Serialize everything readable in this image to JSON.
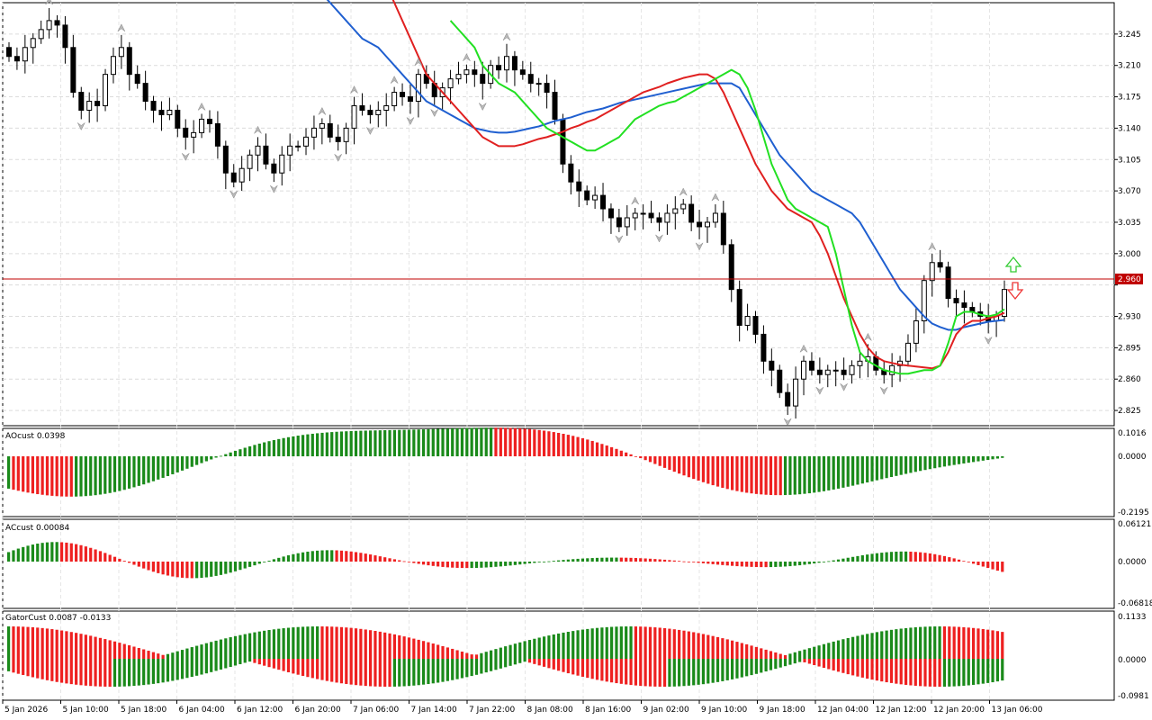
{
  "main_panel": {
    "price_labels": [
      "3.245",
      "3.210",
      "3.175",
      "3.140",
      "3.105",
      "3.070",
      "3.035",
      "3.000",
      "2.965",
      "2.930",
      "2.895",
      "2.860",
      "2.825"
    ],
    "current_price": "2.960",
    "ymin": 2.808,
    "ymax": 3.28,
    "price_grid": [
      3.245,
      3.21,
      3.175,
      3.14,
      3.105,
      3.07,
      3.035,
      3.0,
      2.965,
      2.93,
      2.895,
      2.86,
      2.825
    ]
  },
  "ao_panel": {
    "title": "AOcust 0.0398",
    "labels": [
      "0.1016",
      "0.0000",
      "-0.2195"
    ]
  },
  "ac_panel": {
    "title": "ACcust 0.00084",
    "labels": [
      "0.06121",
      "0.0000",
      "-0.06818"
    ]
  },
  "gator_panel": {
    "title": "GatorCust 0.0087 -0.0133",
    "labels": [
      "0.1133",
      "0.0000",
      "-0.0981"
    ]
  },
  "time_labels": [
    "5 Jan 2026",
    "5 Jan 10:00",
    "5 Jan 18:00",
    "6 Jan 04:00",
    "6 Jan 12:00",
    "6 Jan 20:00",
    "7 Jan 06:00",
    "7 Jan 14:00",
    "7 Jan 22:00",
    "8 Jan 08:00",
    "8 Jan 16:00",
    "9 Jan 02:00",
    "9 Jan 10:00",
    "9 Jan 18:00",
    "12 Jan 04:00",
    "12 Jan 12:00",
    "12 Jan 20:00",
    "13 Jan 06:00"
  ],
  "colors": {
    "jaw": "#1f5fd0",
    "teeth": "#e02020",
    "lips": "#22e022",
    "up": "#1a8a1a",
    "down": "#ee2020",
    "price_line": "#c00000",
    "signal_up": "#33cc33",
    "signal_down": "#ee3333"
  },
  "chart_data": {
    "type": "candlestick",
    "closes": [
      3.22,
      3.215,
      3.23,
      3.24,
      3.25,
      3.26,
      3.255,
      3.23,
      3.18,
      3.16,
      3.17,
      3.165,
      3.2,
      3.22,
      3.23,
      3.2,
      3.19,
      3.17,
      3.16,
      3.155,
      3.16,
      3.14,
      3.13,
      3.135,
      3.15,
      3.145,
      3.12,
      3.09,
      3.08,
      3.095,
      3.11,
      3.12,
      3.1,
      3.09,
      3.11,
      3.12,
      3.12,
      3.13,
      3.14,
      3.145,
      3.13,
      3.125,
      3.14,
      3.165,
      3.16,
      3.155,
      3.16,
      3.165,
      3.18,
      3.175,
      3.17,
      3.2,
      3.19,
      3.175,
      3.185,
      3.195,
      3.2,
      3.205,
      3.2,
      3.19,
      3.21,
      3.205,
      3.22,
      3.205,
      3.2,
      3.19,
      3.19,
      3.18,
      3.15,
      3.1,
      3.08,
      3.07,
      3.06,
      3.065,
      3.05,
      3.04,
      3.03,
      3.04,
      3.045,
      3.045,
      3.04,
      3.035,
      3.045,
      3.05,
      3.055,
      3.035,
      3.03,
      3.035,
      3.045,
      3.01,
      2.96,
      2.92,
      2.93,
      2.91,
      2.88,
      2.87,
      2.845,
      2.83,
      2.86,
      2.88,
      2.87,
      2.865,
      2.87,
      2.87,
      2.865,
      2.875,
      2.88,
      2.885,
      2.87,
      2.865,
      2.875,
      2.88,
      2.9,
      2.925,
      2.97,
      2.99,
      2.985,
      2.95,
      2.945,
      2.94,
      2.935,
      2.93,
      2.925,
      2.93,
      2.96
    ],
    "jaw": [
      3.35,
      3.34,
      3.33,
      3.32,
      3.31,
      3.3,
      3.29,
      3.28,
      3.27,
      3.26,
      3.25,
      3.24,
      3.235,
      3.23,
      3.22,
      3.21,
      3.2,
      3.19,
      3.18,
      3.17,
      3.165,
      3.16,
      3.155,
      3.15,
      3.145,
      3.14,
      3.138,
      3.136,
      3.135,
      3.135,
      3.136,
      3.138,
      3.14,
      3.142,
      3.145,
      3.148,
      3.15,
      3.152,
      3.155,
      3.158,
      3.16,
      3.162,
      3.165,
      3.168,
      3.17,
      3.172,
      3.174,
      3.176,
      3.178,
      3.18,
      3.182,
      3.184,
      3.186,
      3.188,
      3.19,
      3.19,
      3.19,
      3.19,
      3.185,
      3.17,
      3.155,
      3.14,
      3.125,
      3.11,
      3.1,
      3.09,
      3.08,
      3.07,
      3.065,
      3.06,
      3.055,
      3.05,
      3.045,
      3.035,
      3.02,
      3.005,
      2.99,
      2.975,
      2.96,
      2.95,
      2.94,
      2.93,
      2.922,
      2.918,
      2.915,
      2.915,
      2.918,
      2.92,
      2.922,
      2.924,
      2.925,
      2.926
    ],
    "teeth": [
      3.3,
      3.28,
      3.26,
      3.24,
      3.22,
      3.2,
      3.19,
      3.18,
      3.17,
      3.16,
      3.15,
      3.14,
      3.13,
      3.125,
      3.12,
      3.12,
      3.12,
      3.122,
      3.125,
      3.128,
      3.13,
      3.133,
      3.136,
      3.14,
      3.143,
      3.147,
      3.15,
      3.155,
      3.16,
      3.165,
      3.17,
      3.175,
      3.18,
      3.183,
      3.186,
      3.19,
      3.193,
      3.196,
      3.198,
      3.2,
      3.2,
      3.195,
      3.18,
      3.16,
      3.14,
      3.12,
      3.1,
      3.085,
      3.07,
      3.06,
      3.05,
      3.045,
      3.04,
      3.035,
      3.02,
      3.0,
      2.975,
      2.95,
      2.93,
      2.91,
      2.895,
      2.885,
      2.88,
      2.878,
      2.876,
      2.875,
      2.874,
      2.873,
      2.872,
      2.875,
      2.89,
      2.91,
      2.92,
      2.925,
      2.925,
      2.928,
      2.93,
      2.934
    ],
    "lips": [
      3.26,
      3.25,
      3.24,
      3.23,
      3.21,
      3.2,
      3.19,
      3.185,
      3.18,
      3.17,
      3.16,
      3.15,
      3.14,
      3.135,
      3.13,
      3.125,
      3.12,
      3.115,
      3.115,
      3.12,
      3.125,
      3.13,
      3.14,
      3.15,
      3.155,
      3.16,
      3.165,
      3.168,
      3.17,
      3.175,
      3.18,
      3.185,
      3.19,
      3.195,
      3.2,
      3.205,
      3.2,
      3.185,
      3.16,
      3.13,
      3.1,
      3.08,
      3.06,
      3.05,
      3.045,
      3.04,
      3.035,
      3.03,
      3.0,
      2.96,
      2.92,
      2.89,
      2.88,
      2.875,
      2.87,
      2.868,
      2.866,
      2.866,
      2.868,
      2.87,
      2.87,
      2.875,
      2.9,
      2.93,
      2.935,
      2.935,
      2.932,
      2.93,
      2.932,
      2.938
    ]
  }
}
